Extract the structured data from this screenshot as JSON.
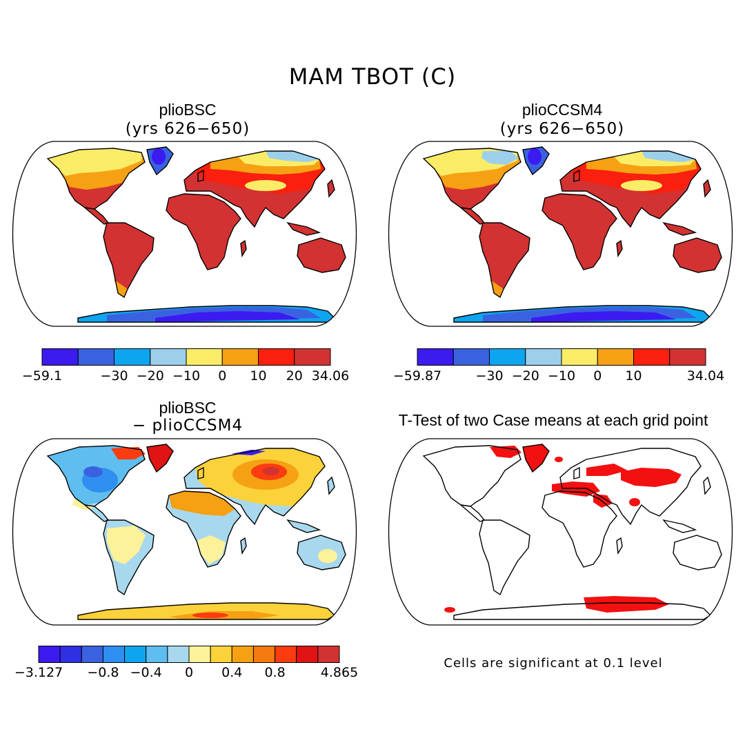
{
  "title": "MAM TBOT (C)",
  "panels": [
    {
      "id": "plioBSC",
      "title": "plioBSC",
      "subtitle": "(yrs 626−650)",
      "colorbar": {
        "colors": [
          "#3b1bf0",
          "#3a62e0",
          "#0ea5f0",
          "#9ccfea",
          "#fbec68",
          "#f5a113",
          "#fa1f0e",
          "#d23232"
        ],
        "ticks": [
          "−59.1",
          "−30",
          "−20",
          "−10",
          "0",
          "10",
          "20",
          "34.06"
        ],
        "tick_edges": [
          0,
          2,
          3,
          4,
          5,
          6,
          7,
          8
        ]
      }
    },
    {
      "id": "plioCCSM4",
      "title": "plioCCSM4",
      "subtitle": "(yrs 626−650)",
      "colorbar": {
        "colors": [
          "#3b1bf0",
          "#3a62e0",
          "#0ea5f0",
          "#9ccfea",
          "#fbec68",
          "#f5a113",
          "#fa1f0e",
          "#d23232"
        ],
        "ticks": [
          "−59.87",
          "−30",
          "−20",
          "−10",
          "0",
          "10",
          "34.04"
        ],
        "tick_edges": [
          0,
          2,
          3,
          4,
          5,
          6,
          8
        ]
      }
    },
    {
      "id": "difference",
      "title": "plioBSC",
      "subtitle": "− plioCCSM4",
      "colorbar": {
        "colors": [
          "#3b1bf0",
          "#2f30e3",
          "#3a62e0",
          "#2f8ff0",
          "#0ea5f0",
          "#5fbdf0",
          "#a8d8ee",
          "#fdf29a",
          "#fbd23a",
          "#f5a113",
          "#f57a10",
          "#fa3c10",
          "#e01414",
          "#d23232"
        ],
        "ticks": [
          "−3.127",
          "−0.8",
          "−0.4",
          "0",
          "0.4",
          "0.8",
          "4.865"
        ],
        "tick_edges": [
          0,
          3,
          5,
          7,
          9,
          11,
          14
        ]
      }
    },
    {
      "id": "ttest",
      "title": "T-Test of two Case means at each grid point",
      "note": "Cells are significant at 0.1 level"
    }
  ]
}
